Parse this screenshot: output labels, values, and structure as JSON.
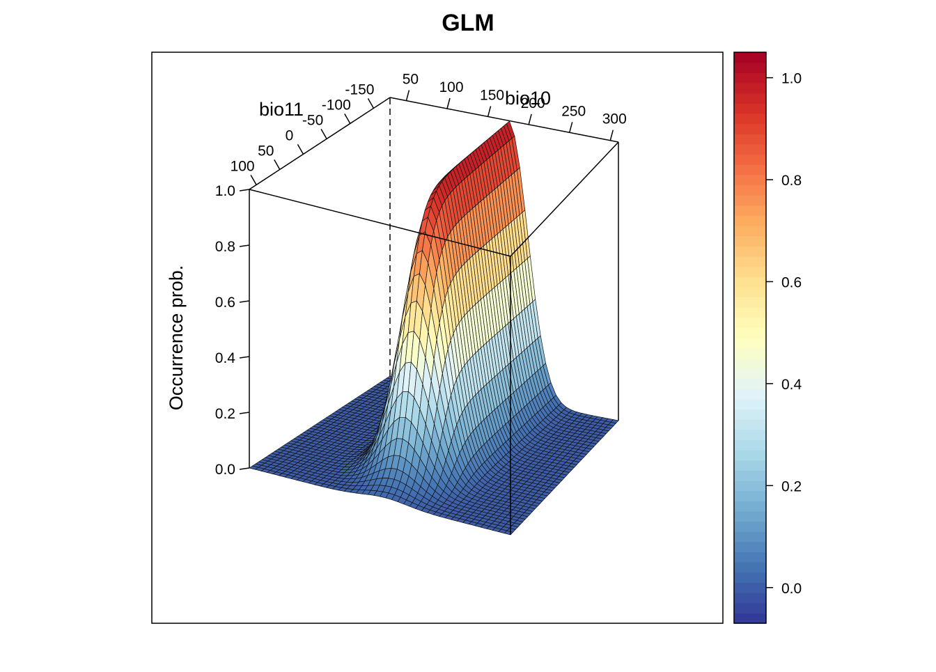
{
  "chart_data": {
    "type": "surface",
    "title": "GLM",
    "x_axis": {
      "label": "bio10",
      "range": [
        30,
        310
      ],
      "ticks": [
        "50",
        "100",
        "150",
        "200",
        "250",
        "300"
      ]
    },
    "y_axis": {
      "label": "bio11",
      "range": [
        -170,
        120
      ],
      "ticks": [
        "100",
        "50",
        "0",
        "-50",
        "-100",
        "-150"
      ]
    },
    "z_axis": {
      "label": "Occurrence prob.",
      "range": [
        0,
        1
      ],
      "ticks": [
        "0.0",
        "0.2",
        "0.4",
        "0.6",
        "0.8",
        "1.0"
      ]
    },
    "colorbar": {
      "range": [
        -0.07,
        1.05
      ],
      "ticks": [
        "0.0",
        "0.2",
        "0.4",
        "0.6",
        "0.8",
        "1.0"
      ],
      "tick_values": [
        0,
        0.2,
        0.4,
        0.6,
        0.8,
        1.0
      ],
      "palette": [
        "#313695",
        "#4575b4",
        "#74add1",
        "#abd9e9",
        "#e0f3f8",
        "#ffffbf",
        "#fee090",
        "#fdae61",
        "#f46d43",
        "#d73027",
        "#a50026"
      ]
    },
    "surface_model": {
      "description_of_shape": "logistic ridge peaking near 1.0 at mid bio10, rising with bio11",
      "peak_value": 1.0,
      "peak_bio10": 175,
      "peak_bio11": -145,
      "grid_resolution": 44
    }
  }
}
